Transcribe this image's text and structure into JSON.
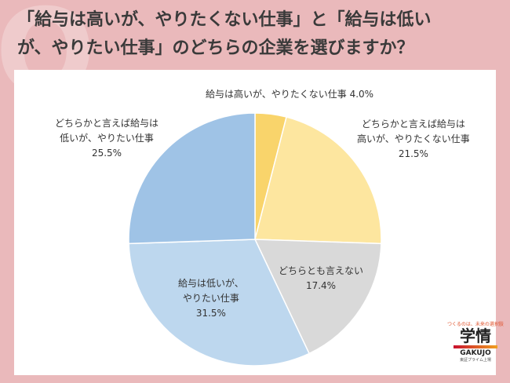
{
  "title_line1": "「給与は高いが、やりたくない仕事」と「給与は低い",
  "title_line2": "が、やりたい仕事」のどちらの企業を選びますか？",
  "chart_data": {
    "type": "pie",
    "start": "top, clockwise",
    "slices": [
      {
        "label": "給与は高いが、やりたくない仕事",
        "value": 4.0,
        "value_label": "4.0%",
        "color": "#f9d46b"
      },
      {
        "label": "どちらかと言えば給与は高いが、やりたくない仕事",
        "value": 21.5,
        "value_label": "21.5%",
        "color": "#fde69f"
      },
      {
        "label": "どちらとも言えない",
        "value": 17.4,
        "value_label": "17.4%",
        "color": "#d9d9d9"
      },
      {
        "label": "給与は低いが、やりたい仕事",
        "value": 31.5,
        "value_label": "31.5%",
        "color": "#bdd7ee"
      },
      {
        "label": "どちらかと言えば給与は低いが、やりたい仕事",
        "value": 25.5,
        "value_label": "25.5%",
        "color": "#9fc3e6"
      }
    ],
    "label_lines": [
      [
        "給与は高いが、やりたくない仕事 4.0%"
      ],
      [
        "どちらかと言えば給与は",
        "高いが、やりたくない仕事",
        "21.5%"
      ],
      [
        "どちらとも言えない",
        "17.4%"
      ],
      [
        "給与は低いが、",
        "やりたい仕事",
        "31.5%"
      ],
      [
        "どちらかと言えば給与は",
        "低いが、やりたい仕事",
        "25.5%"
      ]
    ]
  },
  "logo": {
    "tagline": "つくるのは、未来の選択肢",
    "name": "学情",
    "en": "GAKUJO",
    "sub": "東証プライム上場"
  }
}
